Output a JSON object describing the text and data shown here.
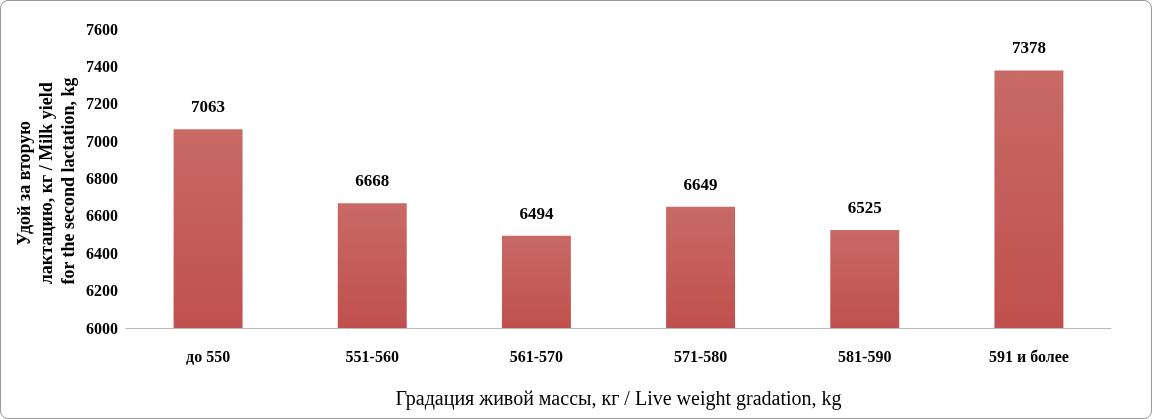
{
  "chart_data": {
    "type": "bar",
    "xlabel": "Градация живой массы, кг / Live weight gradation, kg",
    "ylabel": "Удой за вторую лактацию, кг / Milk yield for the second lactation, kg",
    "categories": [
      "до 550",
      "551-560",
      "561-570",
      "571-580",
      "581-590",
      "591 и более"
    ],
    "values": [
      7063,
      6668,
      6494,
      6649,
      6525,
      7378
    ],
    "color": "#c0504d",
    "ylim": [
      6000,
      7600
    ],
    "yticks": [
      6000,
      6200,
      6400,
      6600,
      6800,
      7000,
      7200,
      7400,
      7600
    ],
    "grid": false,
    "data_labels": true
  }
}
